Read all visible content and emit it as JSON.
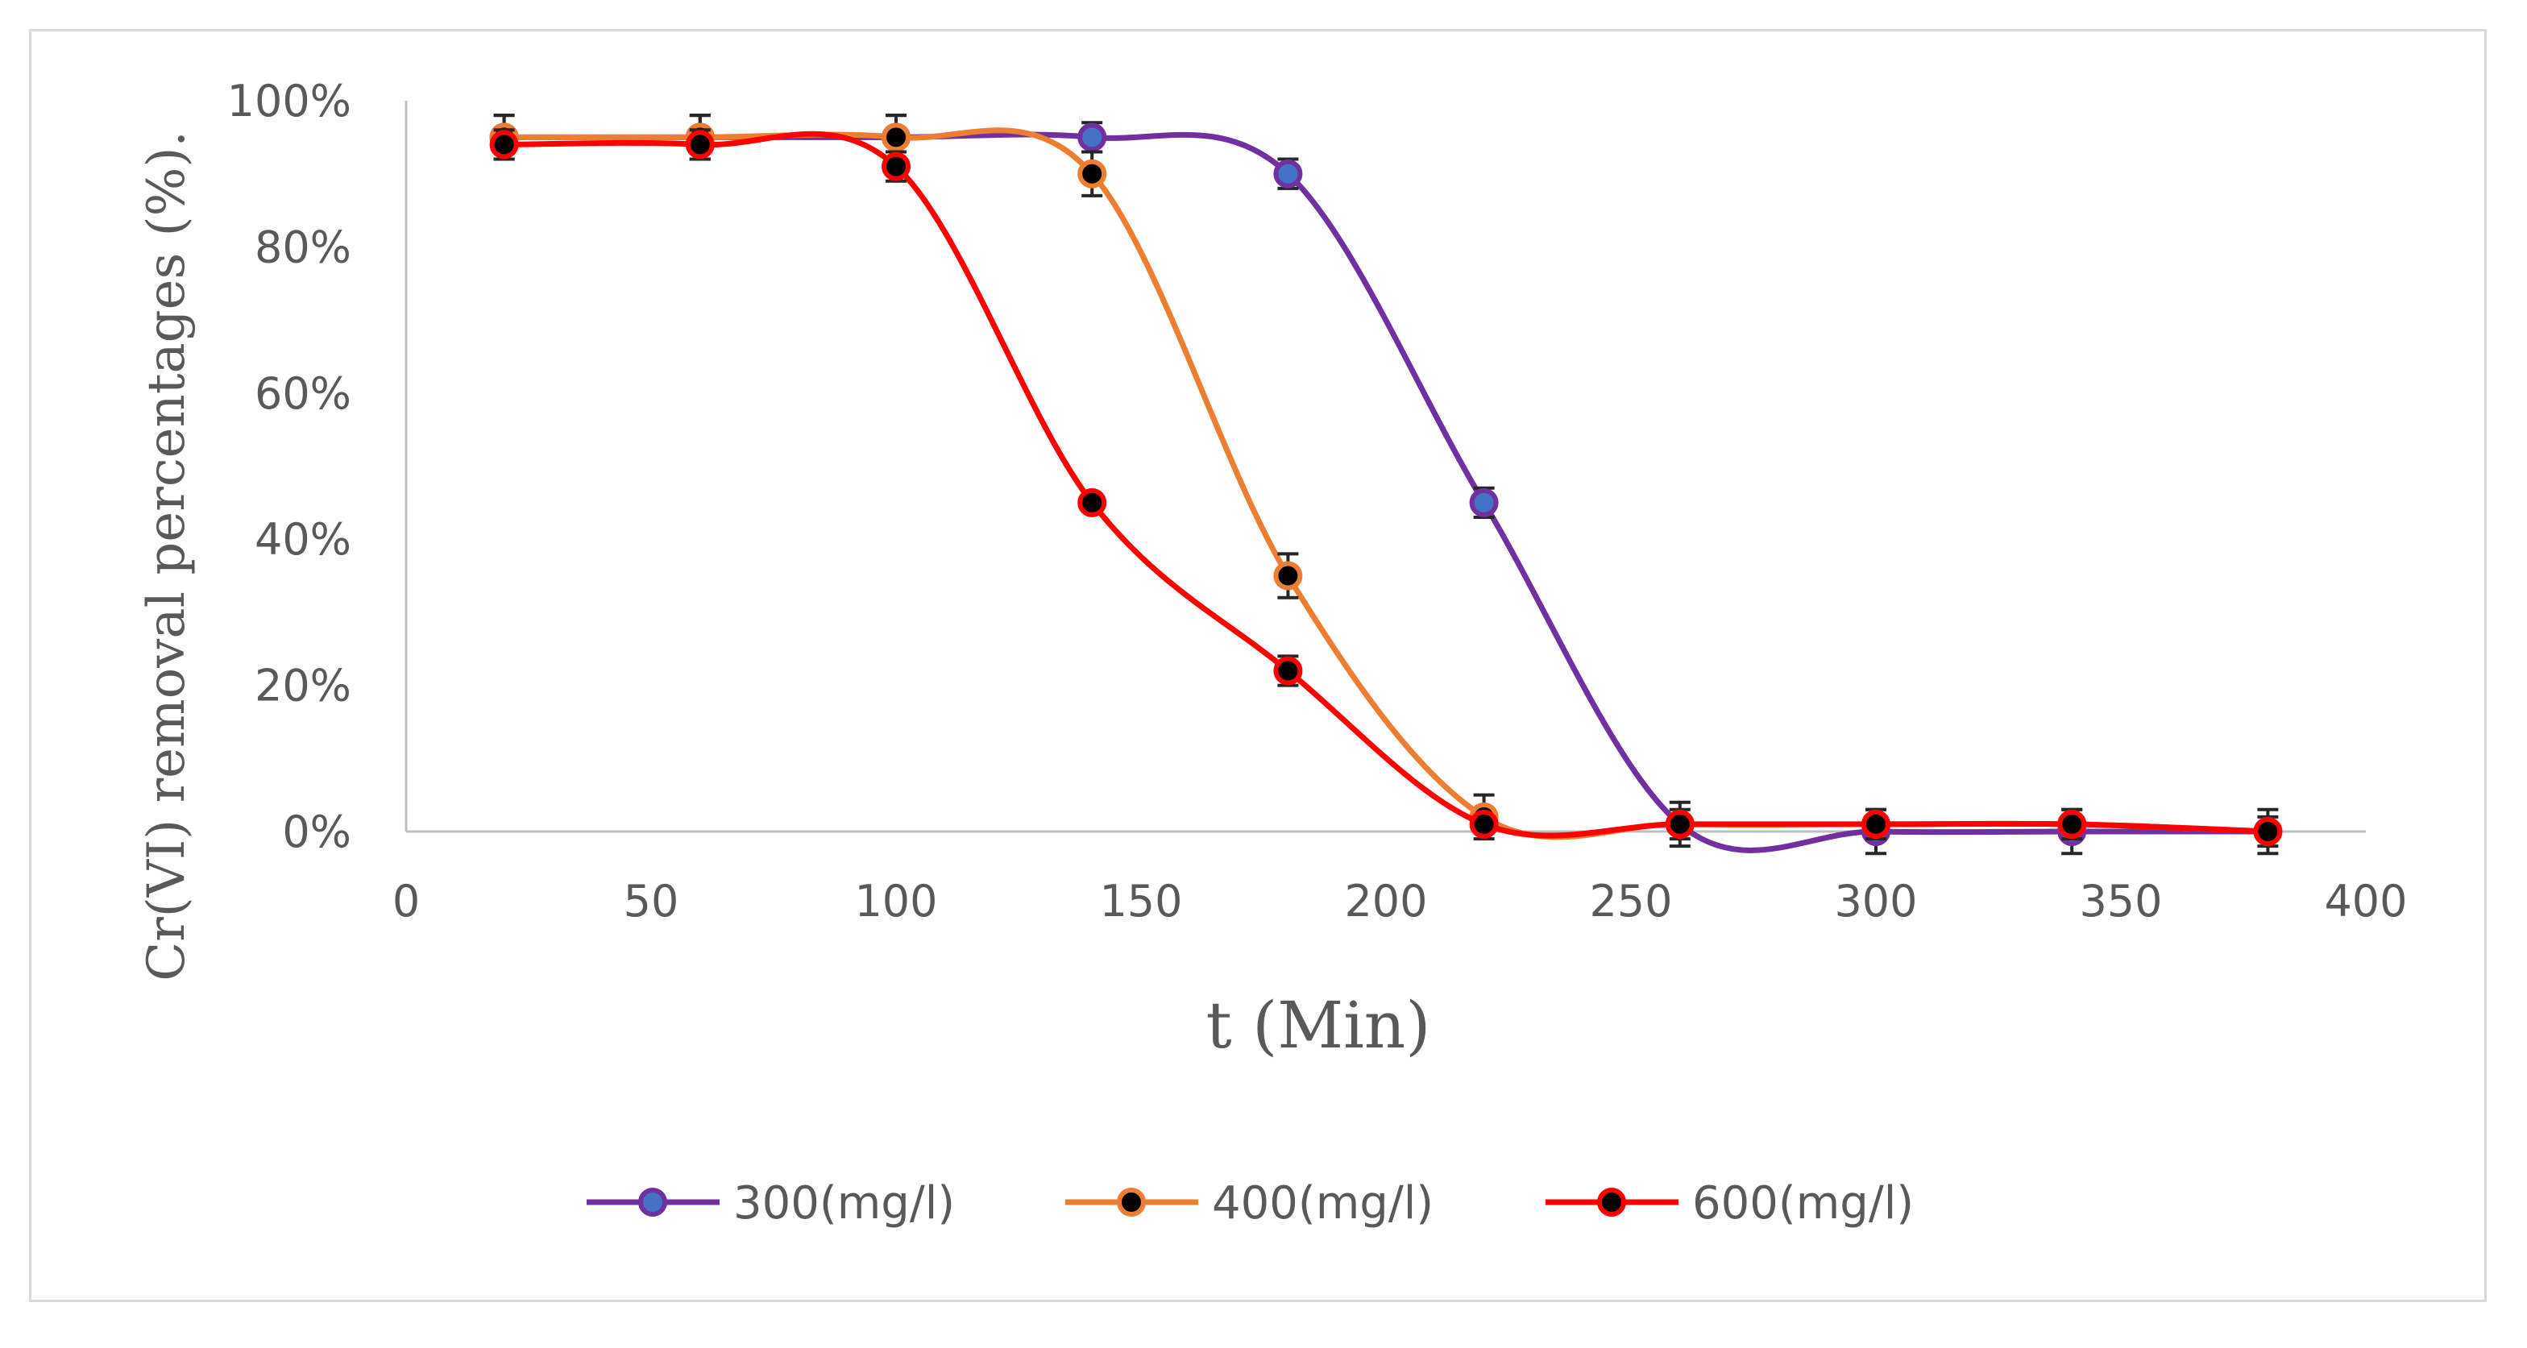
{
  "chart_data": {
    "type": "line",
    "title": "",
    "xlabel": "t (Min)",
    "ylabel": "Cr(VI)  removal percentages (%).",
    "xlim": [
      0,
      400
    ],
    "ylim": [
      0,
      100
    ],
    "x_ticks": [
      "0",
      "50",
      "100",
      "150",
      "200",
      "250",
      "300",
      "350",
      "400"
    ],
    "y_ticks": [
      "0%",
      "20%",
      "40%",
      "60%",
      "80%",
      "100%"
    ],
    "grid": false,
    "legend_position": "bottom",
    "x": [
      20,
      60,
      100,
      140,
      180,
      220,
      260,
      300,
      340,
      380
    ],
    "series": [
      {
        "name": "300(mg/l)",
        "line_color": "#7030a0",
        "marker_fill": "#4472c4",
        "marker_edge": "#7030a0",
        "values": [
          95,
          95,
          95,
          95,
          90,
          45,
          1,
          0,
          0,
          0
        ],
        "error": [
          3,
          3,
          3,
          2,
          2,
          2,
          3,
          3,
          3,
          3
        ]
      },
      {
        "name": "400(mg/l)",
        "line_color": "#ed7d31",
        "marker_fill": "#000000",
        "marker_edge": "#ed7d31",
        "values": [
          95,
          95,
          95,
          90,
          35,
          2,
          1,
          1,
          1,
          0
        ],
        "error": [
          3,
          3,
          3,
          3,
          3,
          3,
          2,
          2,
          2,
          2
        ]
      },
      {
        "name": "600(mg/l)",
        "line_color": "#ff0000",
        "marker_fill": "#000000",
        "marker_edge": "#ff0000",
        "values": [
          94,
          94,
          91,
          45,
          22,
          1,
          1,
          1,
          1,
          0
        ],
        "error": [
          2,
          2,
          2,
          1,
          2,
          1,
          1,
          1,
          1,
          1
        ]
      }
    ]
  }
}
